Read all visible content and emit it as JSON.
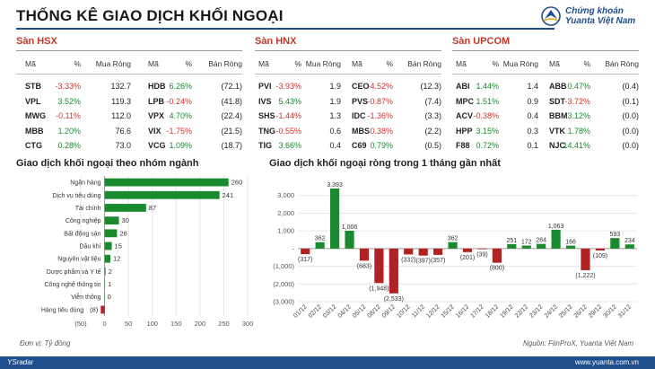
{
  "header": {
    "title": "THỐNG KÊ GIAO DỊCH KHỐI NGOẠI",
    "logo_line1": "Chứng khoán",
    "logo_line2": "Yuanta Việt Nam"
  },
  "tables": [
    {
      "title": "Sàn HSX",
      "headers": [
        "Mã",
        "%",
        "Mua Ròng",
        "Mã",
        "%",
        "Bán Ròng"
      ],
      "rows": [
        [
          "STB",
          "-3.33%",
          "132.7",
          "HDB",
          "6.26%",
          "(72.1)"
        ],
        [
          "VPL",
          "3.52%",
          "119.3",
          "LPB",
          "-0.24%",
          "(41.8)"
        ],
        [
          "MWG",
          "-0.11%",
          "112.0",
          "VPX",
          "4.70%",
          "(22.4)"
        ],
        [
          "MBB",
          "1.20%",
          "76.6",
          "VIX",
          "-1.75%",
          "(21.5)"
        ],
        [
          "CTG",
          "0.28%",
          "73.0",
          "VCG",
          "1.09%",
          "(18.7)"
        ]
      ]
    },
    {
      "title": "Sàn HNX",
      "headers": [
        "Mã",
        "%",
        "Mua Ròng",
        "Mã",
        "%",
        "Bán Ròng"
      ],
      "rows": [
        [
          "PVI",
          "-3.93%",
          "1.9",
          "CEO",
          "-4.52%",
          "(12.3)"
        ],
        [
          "IVS",
          "5.43%",
          "1.9",
          "PVS",
          "-0.87%",
          "(7.4)"
        ],
        [
          "SHS",
          "-1.44%",
          "1.3",
          "IDC",
          "-1.36%",
          "(3.3)"
        ],
        [
          "TNG",
          "-0.55%",
          "0.6",
          "MBS",
          "-0.38%",
          "(2.2)"
        ],
        [
          "TIG",
          "3.66%",
          "0.4",
          "C69",
          "0.79%",
          "(0.5)"
        ]
      ]
    },
    {
      "title": "Sàn UPCOM",
      "headers": [
        "Mã",
        "%",
        "Mua Ròng",
        "Mã",
        "%",
        "Bán Ròng"
      ],
      "rows": [
        [
          "ABI",
          "1.44%",
          "1.4",
          "ABB",
          "0.47%",
          "(0.4)"
        ],
        [
          "MPC",
          "1.51%",
          "0.9",
          "SDT",
          "-3.72%",
          "(0.1)"
        ],
        [
          "ACV",
          "-0.38%",
          "0.4",
          "BBM",
          "3.12%",
          "(0.0)"
        ],
        [
          "HPP",
          "3.15%",
          "0.3",
          "VTK",
          "1.78%",
          "(0.0)"
        ],
        [
          "F88",
          "0.72%",
          "0.1",
          "NJC",
          "14.41%",
          "(0.0)"
        ]
      ]
    }
  ],
  "chart_data": [
    {
      "type": "bar",
      "orientation": "horizontal",
      "title": "Giao dịch khối ngoại theo nhóm ngành",
      "categories": [
        "Ngân hàng",
        "Dịch vụ tiêu dùng",
        "Tài chính",
        "Công nghiệp",
        "Bất động sản",
        "Dầu khí",
        "Nguyên vật liệu",
        "Dược phẩm và Y tế",
        "Công nghệ thông tin",
        "Viễn thông",
        "Hàng tiêu dùng"
      ],
      "values": [
        260,
        241,
        87,
        30,
        26,
        15,
        12,
        2,
        1,
        0,
        -8
      ],
      "value_labels": [
        "260",
        "241",
        "87",
        "30",
        "26",
        "15",
        "12",
        "2",
        "1",
        "0",
        "(8)"
      ],
      "xlim": [
        -50,
        300
      ],
      "xticks": [
        -50,
        0,
        50,
        100,
        150,
        200,
        250,
        300
      ],
      "xtick_labels": [
        "(50)",
        "0",
        "50",
        "100",
        "150",
        "200",
        "250",
        "300"
      ],
      "positive_color": "#1a8a2e",
      "negative_color": "#b22222"
    },
    {
      "type": "bar",
      "title": "Giao dịch khối ngoại ròng trong 1 tháng gần nhất",
      "categories": [
        "01/12",
        "02/12",
        "03/12",
        "04/12",
        "05/12",
        "08/12",
        "09/12",
        "10/12",
        "11/12",
        "12/12",
        "15/12",
        "16/12",
        "17/12",
        "18/12",
        "19/12",
        "22/12",
        "23/12",
        "24/12",
        "25/12",
        "26/12",
        "29/12",
        "30/12",
        "31/12"
      ],
      "values": [
        -317,
        362,
        3393,
        1006,
        -683,
        -1948,
        -2533,
        -332,
        -397,
        -357,
        362,
        -201,
        -39,
        -800,
        251,
        172,
        264,
        1063,
        166,
        -1222,
        -109,
        593,
        234
      ],
      "value_labels": [
        "(317)",
        "362",
        "3,393",
        "1,006",
        "(683)",
        "(1,948)",
        "(2,533)",
        "(332)",
        "(397)",
        "(357)",
        "362",
        "(201)",
        "(39)",
        "(800)",
        "251",
        "172",
        "264",
        "1,063",
        "166",
        "(1,222)",
        "(109)",
        "593",
        "234"
      ],
      "ylim": [
        -3000,
        4000
      ],
      "yticks": [
        -3000,
        -2000,
        -1000,
        0,
        1000,
        2000,
        3000
      ],
      "ytick_labels": [
        "(3,000)",
        "(2,000)",
        "(1,000)",
        "-",
        "1,000",
        "2,000",
        "3,000"
      ],
      "positive_color": "#1a8a2e",
      "negative_color": "#b22222"
    }
  ],
  "notes": {
    "unit": "Đơn vị: Tỷ đồng",
    "source": "Nguồn: FiinProX, Yuanta Việt Nam"
  },
  "footer": {
    "left": "YSradar",
    "right": "www.yuanta.com.vn"
  },
  "colors": {
    "brand": "#1f4e8c",
    "up": "#1a8a2e",
    "down": "#d0342c",
    "table_title": "#c0392b"
  }
}
